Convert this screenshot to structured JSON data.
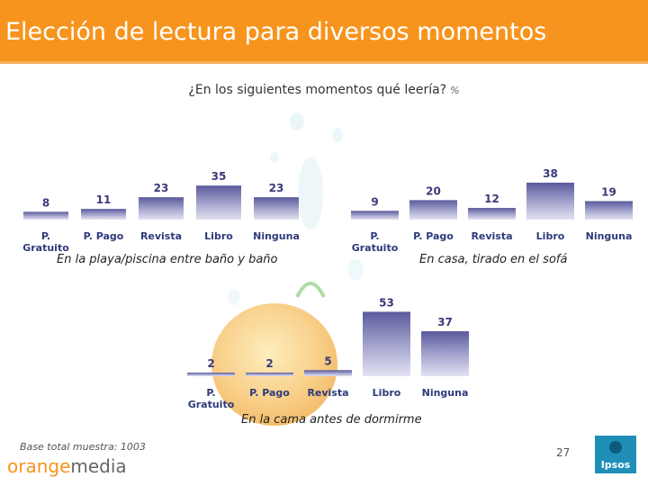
{
  "header": {
    "title": "Elección de lectura para diversos momentos"
  },
  "question": {
    "text": "¿En los siguientes momentos qué leería?",
    "unit": "%"
  },
  "footer": {
    "base_note": "Base total muestra: 1003",
    "brand_orange": "orange",
    "brand_media": "media",
    "page_number": "27",
    "logo_text": "Ipsos"
  },
  "colors": {
    "title_bar": "#f7941d",
    "bar_top": "#d6d6ec",
    "bar_bottom": "#5a5a9c",
    "label": "#2e3a7a"
  },
  "chart_data": [
    {
      "type": "bar",
      "title": "En la playa/piscina entre baño y baño",
      "categories": [
        "P. Gratuito",
        "P. Pago",
        "Revista",
        "Libro",
        "Ninguna"
      ],
      "values": [
        8,
        11,
        23,
        35,
        23
      ],
      "ylim": [
        0,
        60
      ]
    },
    {
      "type": "bar",
      "title": "En casa, tirado en el sofá",
      "categories": [
        "P. Gratuito",
        "P. Pago",
        "Revista",
        "Libro",
        "Ninguna"
      ],
      "values": [
        9,
        20,
        12,
        38,
        19
      ],
      "ylim": [
        0,
        60
      ]
    },
    {
      "type": "bar",
      "title": "En la cama antes de dormirme",
      "categories": [
        "P. Gratuito",
        "P. Pago",
        "Revista",
        "Libro",
        "Ninguna"
      ],
      "values": [
        2,
        2,
        5,
        53,
        37
      ],
      "ylim": [
        0,
        60
      ]
    }
  ]
}
